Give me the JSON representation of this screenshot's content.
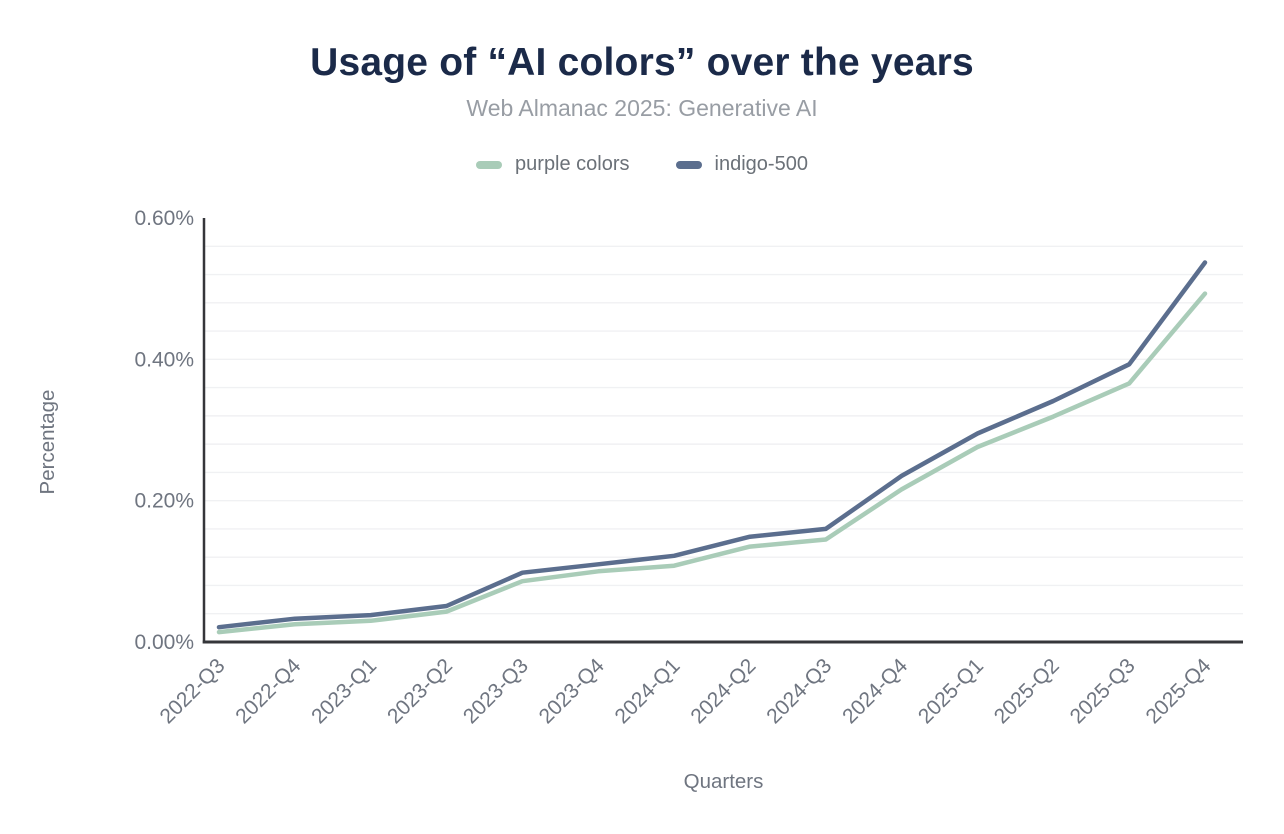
{
  "chart_data": {
    "type": "line",
    "title": "Usage of “AI colors” over the years",
    "subtitle": "Web Almanac 2025: Generative AI",
    "xlabel": "Quarters",
    "ylabel": "Percentage",
    "categories": [
      "2022-Q3",
      "2022-Q4",
      "2023-Q1",
      "2023-Q2",
      "2023-Q3",
      "2023-Q4",
      "2024-Q1",
      "2024-Q2",
      "2024-Q3",
      "2024-Q4",
      "2025-Q1",
      "2025-Q2",
      "2025-Q3",
      "2025-Q4"
    ],
    "series": [
      {
        "name": "purple colors",
        "color": "#a9ccb8",
        "values": [
          0.014,
          0.025,
          0.03,
          0.043,
          0.086,
          0.1,
          0.108,
          0.135,
          0.145,
          0.216,
          0.276,
          0.319,
          0.366,
          0.493
        ]
      },
      {
        "name": "indigo-500",
        "color": "#5b6e8e",
        "values": [
          0.021,
          0.033,
          0.038,
          0.051,
          0.098,
          0.11,
          0.122,
          0.149,
          0.16,
          0.235,
          0.295,
          0.341,
          0.393,
          0.537
        ]
      }
    ],
    "unit": "%",
    "ylim": [
      0,
      0.6
    ],
    "yticks": [
      0,
      0.2,
      0.4,
      0.6
    ],
    "ytick_labels": [
      "0.00%",
      "0.20%",
      "0.40%",
      "0.60%"
    ],
    "grid": "horizontal",
    "grid_interval": 0.04,
    "legend_position": "top-center",
    "colors": {
      "title": "#1b2a49",
      "subtitle": "#989da4",
      "tick_text": "#6f7580",
      "axis": "#35363a",
      "grid": "#f0f1f3",
      "background": "#ffffff"
    }
  }
}
